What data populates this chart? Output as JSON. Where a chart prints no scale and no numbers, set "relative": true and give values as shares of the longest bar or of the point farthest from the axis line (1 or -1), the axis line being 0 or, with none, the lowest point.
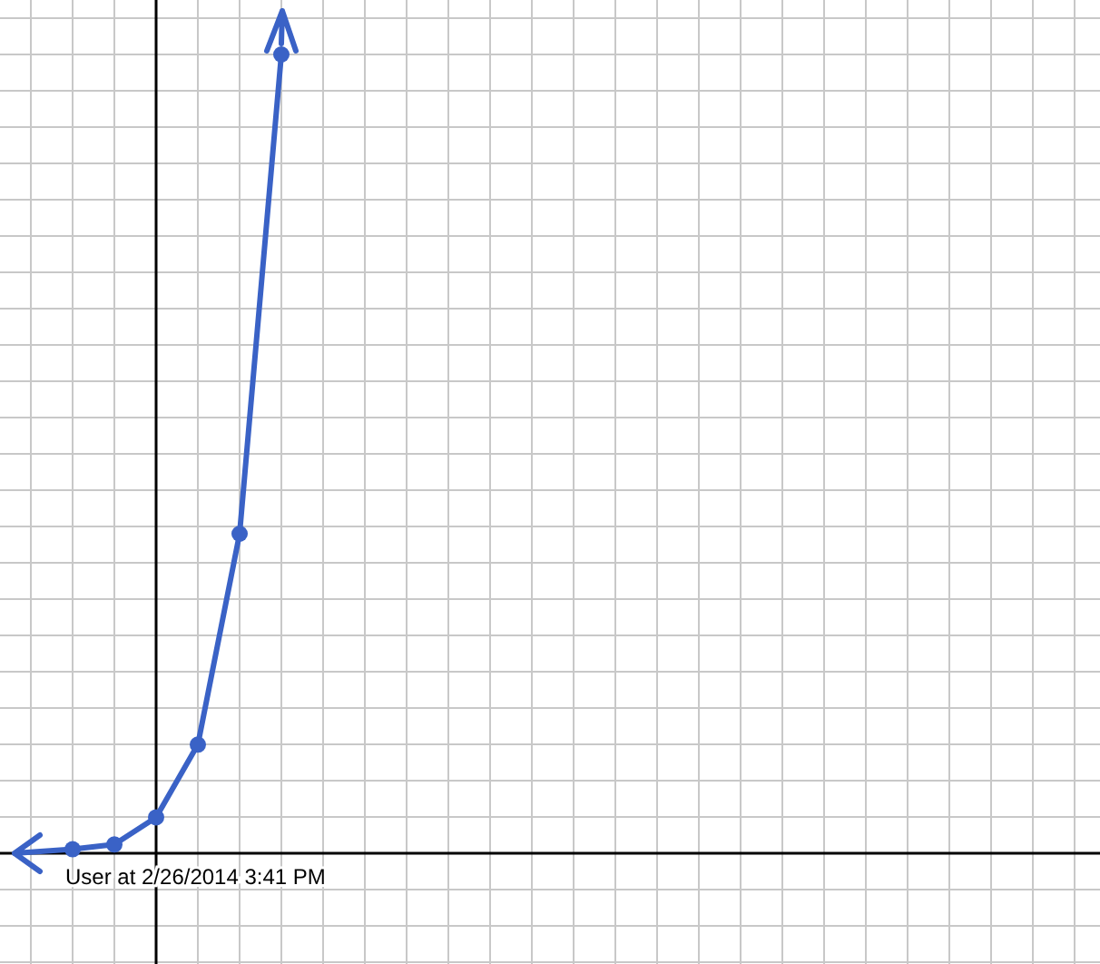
{
  "chart_data": {
    "type": "line",
    "relative": true,
    "grid": true,
    "categories": [
      null,
      null,
      null,
      null,
      null,
      null
    ],
    "series": [
      {
        "color": "#3a62c6",
        "marker": "circle",
        "values": [
          0.005,
          0.011,
          0.045,
          0.136,
          0.4,
          1
        ]
      }
    ],
    "annotations": [
      "User at 2/26/2014 3:41 PM"
    ]
  }
}
